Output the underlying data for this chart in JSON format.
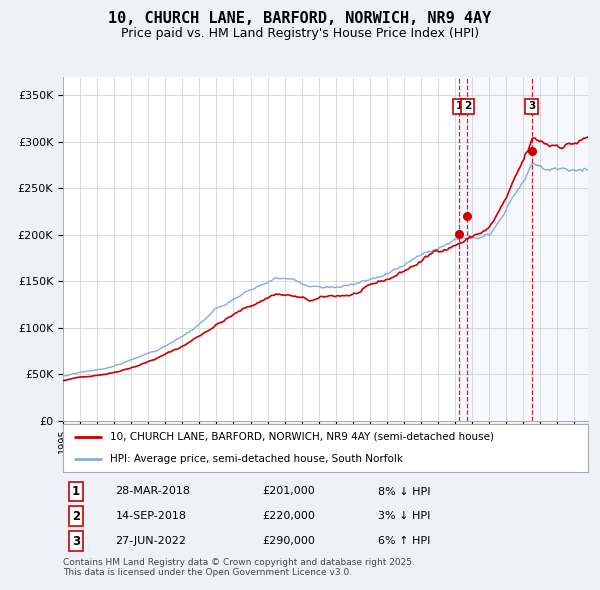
{
  "title": "10, CHURCH LANE, BARFORD, NORWICH, NR9 4AY",
  "subtitle": "Price paid vs. HM Land Registry's House Price Index (HPI)",
  "title_fontsize": 11,
  "subtitle_fontsize": 9,
  "ylabel_ticks": [
    "£0",
    "£50K",
    "£100K",
    "£150K",
    "£200K",
    "£250K",
    "£300K",
    "£350K"
  ],
  "ytick_values": [
    0,
    50000,
    100000,
    150000,
    200000,
    250000,
    300000,
    350000
  ],
  "ylim": [
    0,
    370000
  ],
  "xlim_start": 1995.0,
  "xlim_end": 2025.8,
  "background_color": "#eef2f8",
  "plot_bg_color": "#ffffff",
  "red_line_color": "#cc0000",
  "blue_line_color": "#88aadd",
  "grid_color": "#cccccc",
  "transactions": [
    {
      "label": "1",
      "date_num": 2018.24,
      "price": 201000,
      "pct": "8%",
      "dir": "↓",
      "date_str": "28-MAR-2018"
    },
    {
      "label": "2",
      "date_num": 2018.72,
      "price": 220000,
      "pct": "3%",
      "dir": "↓",
      "date_str": "14-SEP-2018"
    },
    {
      "label": "3",
      "date_num": 2022.49,
      "price": 290000,
      "pct": "6%",
      "dir": "↑",
      "date_str": "27-JUN-2022"
    }
  ],
  "legend_line1": "10, CHURCH LANE, BARFORD, NORWICH, NR9 4AY (semi-detached house)",
  "legend_line2": "HPI: Average price, semi-detached house, South Norfolk",
  "footer": "Contains HM Land Registry data © Crown copyright and database right 2025.\nThis data is licensed under the Open Government Licence v3.0."
}
